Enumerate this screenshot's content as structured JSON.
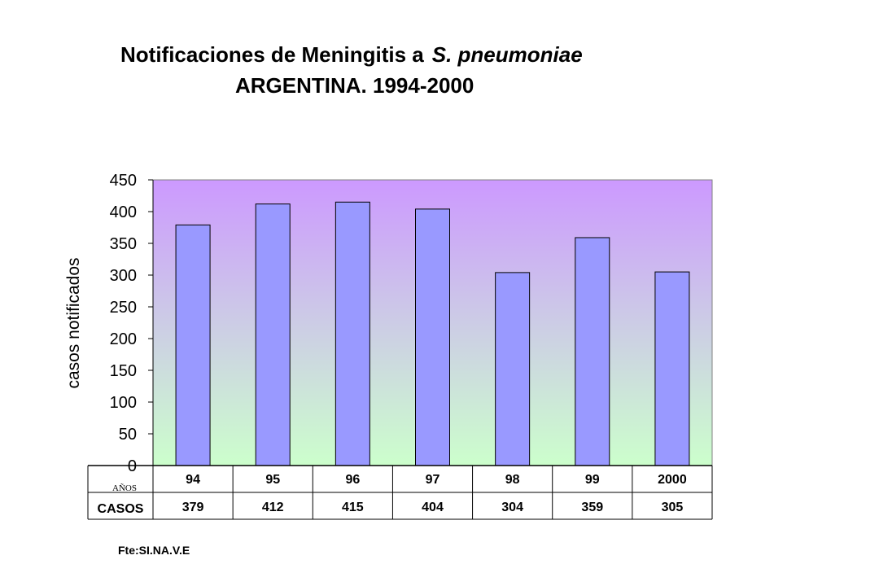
{
  "title": {
    "line1_main": "Notificaciones de Meningitis a",
    "line1_italic": "S. pneumoniae",
    "line2": "ARGENTINA.  1994-2000"
  },
  "source": "Fte:SI.NA.V.E",
  "colors": {
    "bar_fill": "#9999ff",
    "plot_top": "#cc99ff",
    "plot_bottom": "#ccffcc"
  },
  "chart_data": {
    "type": "bar",
    "categories": [
      "94",
      "95",
      "96",
      "97",
      "98",
      "99",
      "2000"
    ],
    "series": [
      {
        "name": "CASOS",
        "values": [
          379,
          412,
          415,
          404,
          304,
          359,
          305
        ]
      }
    ],
    "ylabel": "casos notificados",
    "xlabel": "AÑOS",
    "ylim": [
      0,
      450
    ],
    "yticks": [
      "0",
      "50",
      "100",
      "150",
      "200",
      "250",
      "300",
      "350",
      "400",
      "450"
    ],
    "grid": false,
    "data_table": {
      "row_label": "CASOS",
      "values": [
        "379",
        "412",
        "415",
        "404",
        "304",
        "359",
        "305"
      ]
    }
  }
}
